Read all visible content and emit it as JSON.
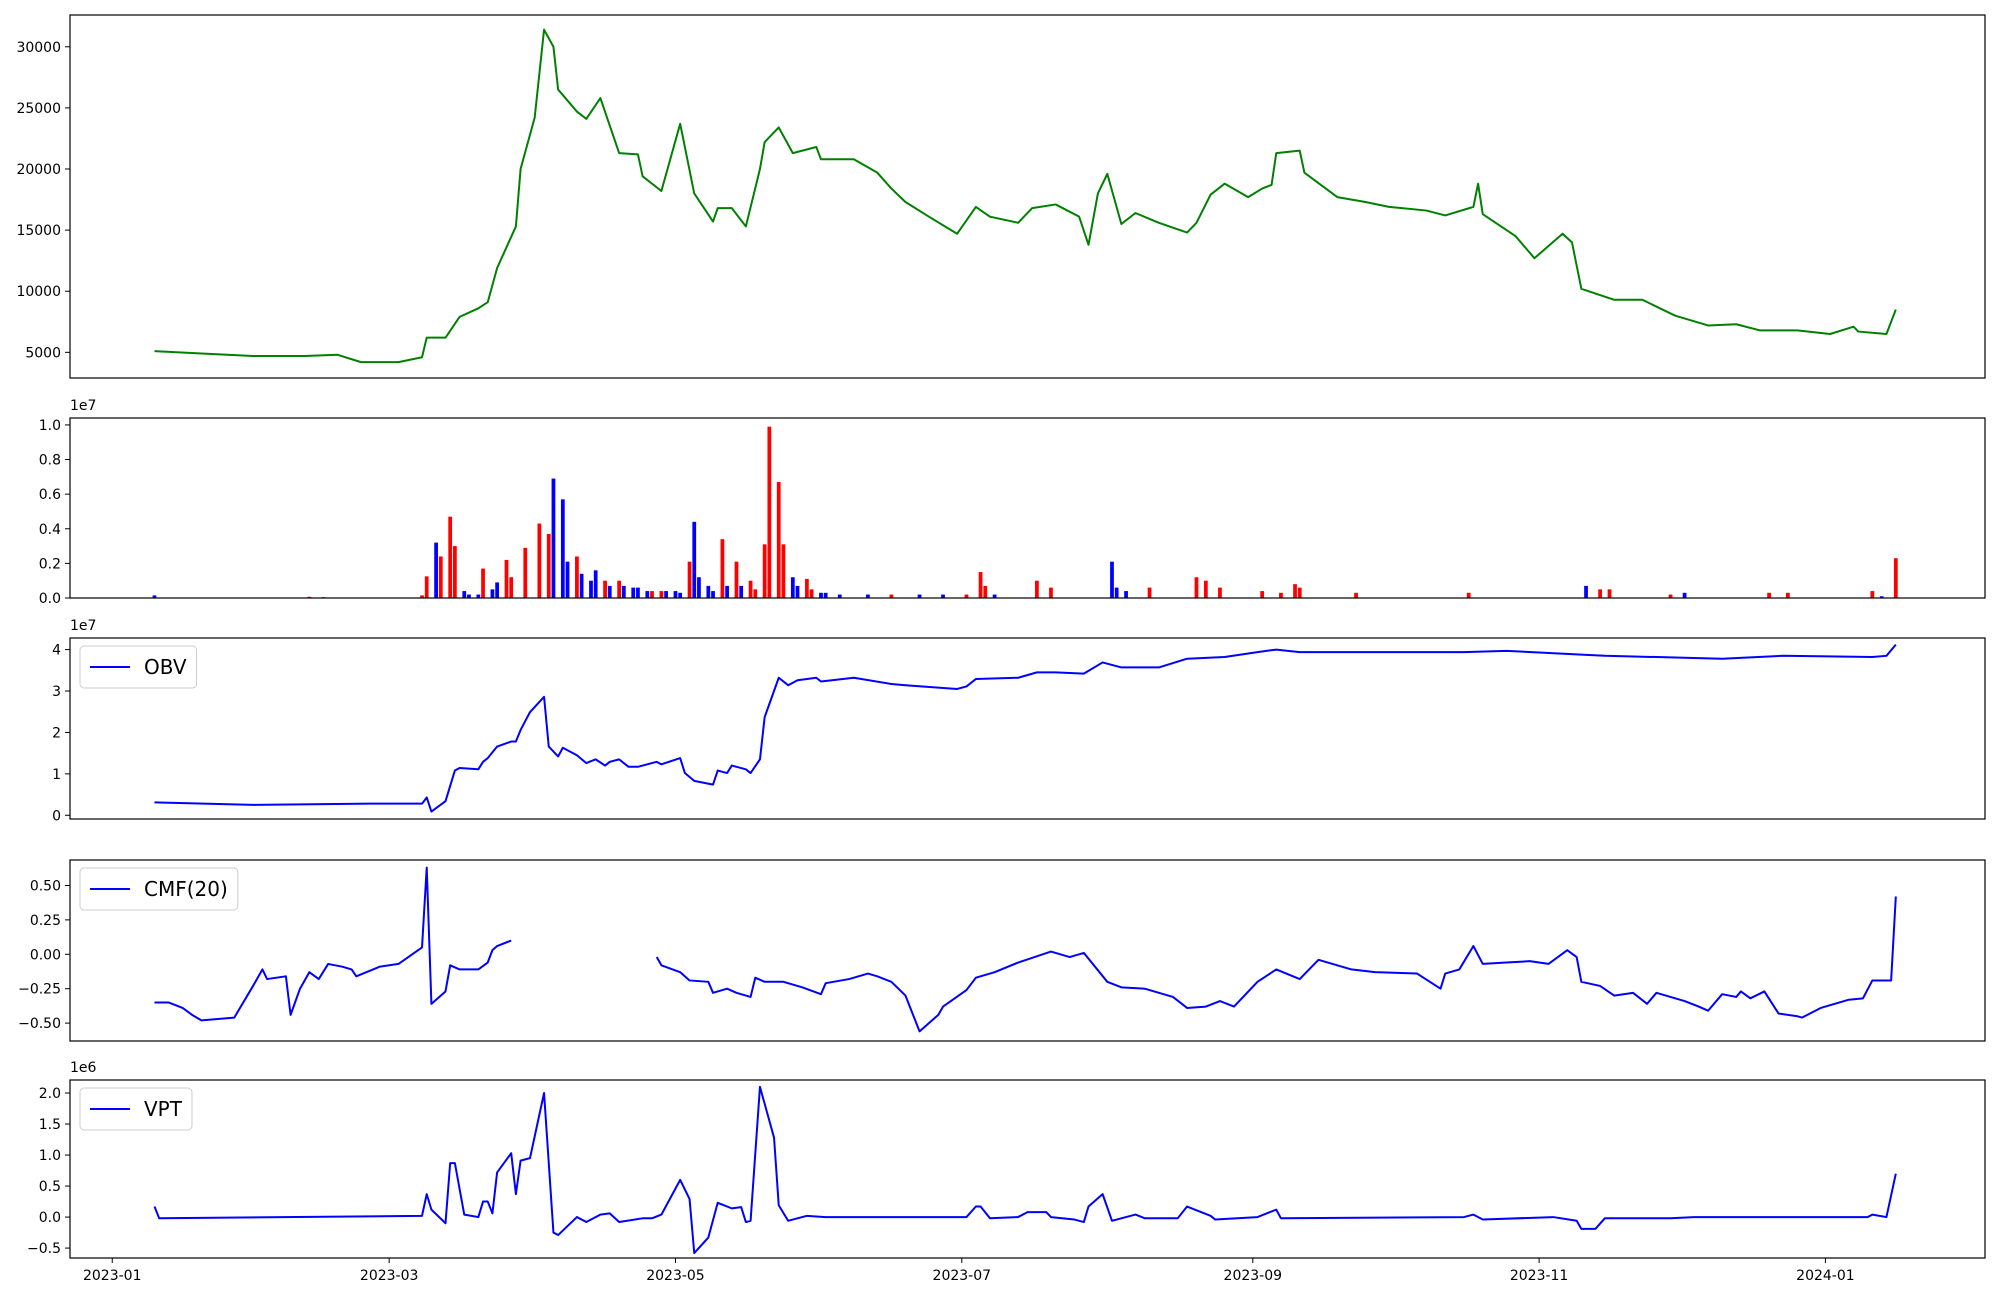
{
  "chart_data": [
    {
      "type": "line",
      "color": "green",
      "xlim": [
        19349,
        19757
      ],
      "ylim": [
        2900,
        32600
      ],
      "yticks": [
        5000,
        10000,
        15000,
        20000,
        25000,
        30000
      ],
      "x": [
        19367,
        19377,
        19388,
        19399,
        19406,
        19411,
        19419,
        19424,
        19425,
        19429,
        19432,
        19436,
        19438,
        19440,
        19444,
        19445,
        19448,
        19450,
        19452,
        19453,
        19457,
        19459,
        19462,
        19466,
        19470,
        19471,
        19475,
        19479,
        19482,
        19486,
        19487,
        19490,
        19493,
        19496,
        19497,
        19500,
        19503,
        19508,
        19509,
        19516,
        19521,
        19524,
        19527,
        19532,
        19538,
        19542,
        19545,
        19551,
        19554,
        19559,
        19564,
        19566,
        19568,
        19570,
        19573,
        19576,
        19581,
        19587,
        19589,
        19592,
        19595,
        19600,
        19603,
        19605,
        19606,
        19611,
        19612,
        19619,
        19625,
        19630,
        19638,
        19642,
        19648,
        19649,
        19650,
        19657,
        19661,
        19667,
        19669,
        19671,
        19678,
        19684,
        19691,
        19698,
        19704,
        19709,
        19717,
        19724,
        19729,
        19730,
        19736,
        19738
      ],
      "values": [
        5100,
        4900,
        4700,
        4700,
        4800,
        4200,
        4200,
        4600,
        6200,
        6200,
        7900,
        8600,
        9100,
        11900,
        15300,
        20000,
        24200,
        31400,
        30000,
        26500,
        24700,
        24100,
        25800,
        21300,
        21200,
        19400,
        18200,
        23700,
        18000,
        15700,
        16800,
        16800,
        15300,
        20000,
        22200,
        23400,
        21300,
        21800,
        20800,
        20800,
        19700,
        18400,
        17300,
        16100,
        14700,
        16900,
        16100,
        15600,
        16800,
        17100,
        16100,
        13800,
        18000,
        19600,
        15500,
        16400,
        15600,
        14800,
        15600,
        17900,
        18800,
        17700,
        18400,
        18700,
        21300,
        21500,
        19700,
        17700,
        17300,
        16900,
        16600,
        16200,
        16900,
        18800,
        16300,
        14500,
        12700,
        14700,
        14000,
        10200,
        9300,
        9300,
        8000,
        7200,
        7300,
        6800,
        6800,
        6500,
        7100,
        6700,
        6500,
        8500
      ]
    },
    {
      "type": "bar",
      "xlim": [
        19349,
        19757
      ],
      "ylim": [
        0,
        1.04
      ],
      "y_offset_label": "1e7",
      "yticks": [
        {
          "value": 0,
          "label": "0.0"
        },
        0.2,
        0.4,
        0.6,
        0.8,
        {
          "value": 1,
          "label": "1.0"
        }
      ],
      "x": [
        19367,
        19400,
        19403,
        19424,
        19425,
        19427,
        19428,
        19430,
        19431,
        19433,
        19434,
        19436,
        19437,
        19439,
        19440,
        19442,
        19443,
        19446,
        19449,
        19451,
        19452,
        19454,
        19455,
        19457,
        19458,
        19460,
        19461,
        19463,
        19464,
        19466,
        19467,
        19469,
        19470,
        19472,
        19473,
        19475,
        19476,
        19478,
        19479,
        19481,
        19482,
        19483,
        19485,
        19486,
        19488,
        19489,
        19491,
        19492,
        19494,
        19495,
        19497,
        19498,
        19500,
        19501,
        19503,
        19504,
        19506,
        19507,
        19509,
        19510,
        19513,
        19519,
        19524,
        19530,
        19535,
        19540,
        19543,
        19544,
        19546,
        19555,
        19558,
        19571,
        19572,
        19574,
        19579,
        19589,
        19591,
        19594,
        19603,
        19607,
        19610,
        19611,
        19623,
        19647,
        19672,
        19675,
        19677,
        19690,
        19693,
        19711,
        19715,
        19733,
        19735,
        19738
      ],
      "values": [
        0.015,
        0.007,
        0.005,
        0.015,
        0.125,
        0.32,
        0.24,
        0.47,
        0.3,
        0.04,
        0.02,
        0.02,
        0.17,
        0.05,
        0.09,
        0.22,
        0.12,
        0.29,
        0.43,
        0.37,
        0.69,
        0.57,
        0.21,
        0.24,
        0.14,
        0.1,
        0.16,
        0.1,
        0.07,
        0.1,
        0.07,
        0.06,
        0.06,
        0.04,
        0.04,
        0.04,
        0.04,
        0.04,
        0.03,
        0.21,
        0.44,
        0.12,
        0.07,
        0.04,
        0.34,
        0.07,
        0.21,
        0.07,
        0.1,
        0.05,
        0.31,
        0.99,
        0.67,
        0.31,
        0.12,
        0.07,
        0.11,
        0.05,
        0.03,
        0.03,
        0.02,
        0.02,
        0.02,
        0.02,
        0.02,
        0.02,
        0.15,
        0.07,
        0.02,
        0.1,
        0.06,
        0.21,
        0.06,
        0.04,
        0.06,
        0.12,
        0.1,
        0.06,
        0.04,
        0.03,
        0.08,
        0.06,
        0.03,
        0.03,
        0.07,
        0.05,
        0.05,
        0.02,
        0.03,
        0.03,
        0.03,
        0.04,
        0.01,
        0.23
      ],
      "colors": [
        "blue",
        "red",
        "red",
        "red",
        "red",
        "blue",
        "red",
        "red",
        "red",
        "blue",
        "blue",
        "blue",
        "red",
        "blue",
        "blue",
        "red",
        "red",
        "red",
        "red",
        "red",
        "blue",
        "blue",
        "blue",
        "red",
        "blue",
        "blue",
        "blue",
        "red",
        "blue",
        "red",
        "blue",
        "blue",
        "blue",
        "blue",
        "red",
        "red",
        "blue",
        "blue",
        "blue",
        "red",
        "blue",
        "blue",
        "blue",
        "blue",
        "red",
        "blue",
        "red",
        "blue",
        "red",
        "red",
        "red",
        "red",
        "red",
        "red",
        "blue",
        "blue",
        "red",
        "red",
        "blue",
        "blue",
        "blue",
        "blue",
        "red",
        "blue",
        "blue",
        "red",
        "red",
        "red",
        "blue",
        "red",
        "red",
        "blue",
        "blue",
        "blue",
        "red",
        "red",
        "red",
        "red",
        "red",
        "red",
        "red",
        "red",
        "red",
        "red",
        "blue",
        "red",
        "red",
        "red",
        "blue",
        "red",
        "red",
        "red",
        "blue",
        "red"
      ]
    },
    {
      "type": "line",
      "xlim": [
        19349,
        19757
      ],
      "ylim": [
        -0.09,
        4.28
      ],
      "y_offset_label": "1e7",
      "legend": "upper left",
      "yticks": [
        0,
        1,
        2,
        3,
        4
      ],
      "x": [
        19367,
        19388,
        19413,
        19424,
        19425,
        19426,
        19429,
        19431,
        19432,
        19436,
        19437,
        19438,
        19440,
        19443,
        19444,
        19445,
        19447,
        19450,
        19451,
        19453,
        19454,
        19457,
        19459,
        19461,
        19463,
        19464,
        19466,
        19468,
        19470,
        19474,
        19475,
        19479,
        19480,
        19482,
        19486,
        19487,
        19489,
        19490,
        19493,
        19494,
        19496,
        19497,
        19500,
        19502,
        19504,
        19508,
        19509,
        19516,
        19524,
        19527,
        19538,
        19540,
        19542,
        19551,
        19555,
        19559,
        19565,
        19569,
        19573,
        19581,
        19587,
        19595,
        19602,
        19606,
        19611,
        19627,
        19646,
        19655,
        19671,
        19676,
        19687,
        19701,
        19714,
        19733,
        19736,
        19738
      ],
      "series": [
        {
          "name": "OBV",
          "color": "blue",
          "values": [
            0.31,
            0.25,
            0.28,
            0.28,
            0.43,
            0.09,
            0.34,
            1.08,
            1.14,
            1.11,
            1.29,
            1.38,
            1.66,
            1.78,
            1.78,
            2.06,
            2.49,
            2.86,
            1.66,
            1.42,
            1.63,
            1.45,
            1.26,
            1.35,
            1.2,
            1.29,
            1.35,
            1.17,
            1.17,
            1.29,
            1.23,
            1.38,
            1.02,
            0.83,
            0.74,
            1.08,
            1.02,
            1.2,
            1.11,
            1.02,
            1.35,
            2.37,
            3.32,
            3.14,
            3.26,
            3.32,
            3.23,
            3.32,
            3.17,
            3.14,
            3.05,
            3.11,
            3.29,
            3.32,
            3.45,
            3.45,
            3.42,
            3.69,
            3.57,
            3.57,
            3.78,
            3.82,
            3.94,
            4.0,
            3.94,
            3.94,
            3.94,
            3.97,
            3.88,
            3.85,
            3.82,
            3.78,
            3.85,
            3.82,
            3.85,
            4.12
          ]
        }
      ]
    },
    {
      "type": "line",
      "xlim": [
        19349,
        19757
      ],
      "ylim": [
        -0.63,
        0.685
      ],
      "legend": "upper left",
      "yticks": [
        {
          "value": -0.5,
          "label": "−0.50"
        },
        {
          "value": -0.25,
          "label": "−0.25"
        },
        {
          "value": 0,
          "label": "0.00"
        },
        {
          "value": 0.25,
          "label": "0.25"
        },
        {
          "value": 0.5,
          "label": "0.50"
        }
      ],
      "x": [
        19367,
        19370,
        19373,
        19375,
        19376,
        19377,
        19384,
        19388,
        19390,
        19391,
        19395,
        19396,
        19398,
        19400,
        19402,
        19404,
        19407,
        19409,
        19410,
        19415,
        19419,
        19424,
        19425,
        19426,
        19429,
        19430,
        19432,
        19436,
        19438,
        19439,
        19440,
        19443,
        null,
        19474,
        19475,
        19479,
        19481,
        19485,
        19486,
        19489,
        19491,
        19494,
        19495,
        19497,
        19501,
        19505,
        19509,
        19510,
        19515,
        19519,
        19521,
        19524,
        19527,
        19530,
        19534,
        19535,
        19540,
        19542,
        19546,
        19551,
        19558,
        19562,
        19565,
        19570,
        19573,
        19578,
        19584,
        19587,
        19591,
        19594,
        19597,
        19602,
        19606,
        19611,
        19615,
        19618,
        19622,
        19627,
        19636,
        19641,
        19642,
        19645,
        19648,
        19650,
        19655,
        19660,
        19664,
        19668,
        19670,
        19671,
        19675,
        19678,
        19682,
        19685,
        19687,
        19690,
        19693,
        19696,
        19698,
        19701,
        19704,
        19705,
        19707,
        19710,
        19713,
        19717,
        19718,
        19722,
        19728,
        19731,
        19733,
        19737,
        19738
      ],
      "series": [
        {
          "name": "CMF(20)",
          "color": "blue",
          "values": [
            -0.35,
            -0.35,
            -0.39,
            -0.44,
            -0.46,
            -0.48,
            -0.46,
            -0.23,
            -0.11,
            -0.18,
            -0.16,
            -0.44,
            -0.25,
            -0.13,
            -0.18,
            -0.07,
            -0.09,
            -0.11,
            -0.16,
            -0.09,
            -0.07,
            0.05,
            0.63,
            -0.36,
            -0.27,
            -0.08,
            -0.11,
            -0.11,
            -0.06,
            0.03,
            0.06,
            0.1,
            null,
            -0.02,
            -0.08,
            -0.13,
            -0.19,
            -0.2,
            -0.28,
            -0.25,
            -0.28,
            -0.31,
            -0.17,
            -0.2,
            -0.2,
            -0.24,
            -0.29,
            -0.21,
            -0.18,
            -0.14,
            -0.16,
            -0.2,
            -0.3,
            -0.56,
            -0.44,
            -0.38,
            -0.26,
            -0.17,
            -0.13,
            -0.06,
            0.02,
            -0.02,
            0.01,
            -0.2,
            -0.24,
            -0.25,
            -0.31,
            -0.39,
            -0.38,
            -0.34,
            -0.38,
            -0.2,
            -0.11,
            -0.18,
            -0.04,
            -0.07,
            -0.11,
            -0.13,
            -0.14,
            -0.25,
            -0.14,
            -0.11,
            0.06,
            -0.07,
            -0.06,
            -0.05,
            -0.07,
            0.03,
            -0.02,
            -0.2,
            -0.23,
            -0.3,
            -0.28,
            -0.36,
            -0.28,
            -0.31,
            -0.34,
            -0.38,
            -0.41,
            -0.29,
            -0.31,
            -0.27,
            -0.32,
            -0.27,
            -0.43,
            -0.45,
            -0.46,
            -0.39,
            -0.33,
            -0.32,
            -0.19,
            -0.19,
            0.42
          ]
        }
      ]
    },
    {
      "type": "line",
      "xlim": [
        19349,
        19757
      ],
      "ylim": [
        -0.66,
        2.21
      ],
      "y_offset_label": "1e6",
      "legend": "upper left",
      "yticks": [
        {
          "value": -0.5,
          "label": "−0.5"
        },
        {
          "value": 0,
          "label": "0.0"
        },
        0.5,
        {
          "value": 1,
          "label": "1.0"
        },
        1.5,
        {
          "value": 2,
          "label": "2.0"
        }
      ],
      "xticks": [
        {
          "value": 19358,
          "label": "2023-01"
        },
        {
          "value": 19417,
          "label": "2023-03"
        },
        {
          "value": 19478,
          "label": "2023-05"
        },
        {
          "value": 19539,
          "label": "2023-07"
        },
        {
          "value": 19601,
          "label": "2023-09"
        },
        {
          "value": 19662,
          "label": "2023-11"
        },
        {
          "value": 19723,
          "label": "2024-01"
        }
      ],
      "x": [
        19367,
        19368,
        19424,
        19425,
        19426,
        19429,
        19430,
        19431,
        19433,
        19436,
        19437,
        19438,
        19439,
        19440,
        19443,
        19444,
        19445,
        19447,
        19450,
        19452,
        19453,
        19457,
        19459,
        19462,
        19464,
        19466,
        19471,
        19473,
        19475,
        19479,
        19481,
        19482,
        19485,
        19487,
        19490,
        19492,
        19493,
        19494,
        19496,
        19499,
        19500,
        19502,
        19506,
        19510,
        19540,
        19542,
        19543,
        19545,
        19551,
        19553,
        19557,
        19558,
        19563,
        19565,
        19566,
        19569,
        19571,
        19576,
        19578,
        19585,
        19587,
        19592,
        19593,
        19602,
        19606,
        19607,
        19646,
        19648,
        19650,
        19665,
        19670,
        19671,
        19674,
        19676,
        19683,
        19690,
        19695,
        19714,
        19732,
        19733,
        19736,
        19738
      ],
      "series": [
        {
          "name": "VPT",
          "color": "blue",
          "values": [
            0.17,
            -0.02,
            0.02,
            0.37,
            0.12,
            -0.1,
            0.87,
            0.87,
            0.04,
            0.0,
            0.25,
            0.25,
            0.06,
            0.72,
            1.03,
            0.37,
            0.91,
            0.95,
            2.0,
            -0.25,
            -0.29,
            0.0,
            -0.08,
            0.04,
            0.06,
            -0.08,
            -0.02,
            -0.02,
            0.04,
            0.6,
            0.29,
            -0.58,
            -0.33,
            0.23,
            0.14,
            0.16,
            -0.08,
            -0.06,
            2.1,
            1.28,
            0.19,
            -0.06,
            0.02,
            0.0,
            0.0,
            0.17,
            0.17,
            -0.02,
            0.0,
            0.08,
            0.08,
            0.0,
            -0.04,
            -0.08,
            0.17,
            0.37,
            -0.06,
            0.04,
            -0.02,
            -0.02,
            0.17,
            0.02,
            -0.04,
            0.0,
            0.12,
            -0.02,
            0.0,
            0.04,
            -0.04,
            0.0,
            -0.06,
            -0.19,
            -0.19,
            -0.02,
            -0.02,
            -0.02,
            0.0,
            0.0,
            0.0,
            0.04,
            0.0,
            0.7
          ]
        }
      ]
    }
  ]
}
